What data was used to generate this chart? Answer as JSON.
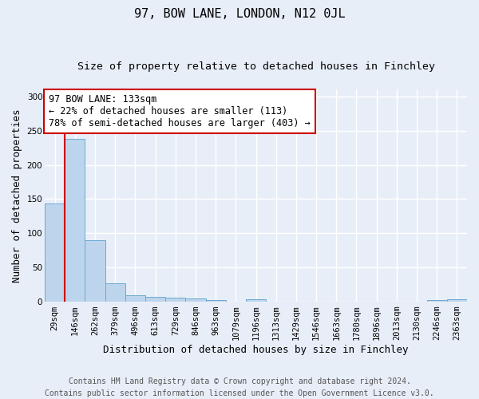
{
  "title": "97, BOW LANE, LONDON, N12 0JL",
  "subtitle": "Size of property relative to detached houses in Finchley",
  "xlabel": "Distribution of detached houses by size in Finchley",
  "ylabel": "Number of detached properties",
  "categories": [
    "29sqm",
    "146sqm",
    "262sqm",
    "379sqm",
    "496sqm",
    "613sqm",
    "729sqm",
    "846sqm",
    "963sqm",
    "1079sqm",
    "1196sqm",
    "1313sqm",
    "1429sqm",
    "1546sqm",
    "1663sqm",
    "1780sqm",
    "1896sqm",
    "2013sqm",
    "2130sqm",
    "2246sqm",
    "2363sqm"
  ],
  "values": [
    143,
    238,
    90,
    27,
    9,
    7,
    6,
    5,
    2,
    0,
    3,
    0,
    0,
    0,
    0,
    0,
    0,
    0,
    0,
    2,
    3
  ],
  "bar_color": "#bdd5ec",
  "bar_edge_color": "#6aaad4",
  "background_color": "#e8eef8",
  "grid_color": "#ffffff",
  "annotation_text": "97 BOW LANE: 133sqm\n← 22% of detached houses are smaller (113)\n78% of semi-detached houses are larger (403) →",
  "annotation_box_color": "#ffffff",
  "annotation_box_edge": "#cc0000",
  "vline_x": 0.5,
  "vline_color": "#cc0000",
  "ylim": [
    0,
    310
  ],
  "yticks": [
    0,
    50,
    100,
    150,
    200,
    250,
    300
  ],
  "footer": "Contains HM Land Registry data © Crown copyright and database right 2024.\nContains public sector information licensed under the Open Government Licence v3.0.",
  "title_fontsize": 11,
  "subtitle_fontsize": 9.5,
  "axis_label_fontsize": 9,
  "tick_fontsize": 7.5,
  "annotation_fontsize": 8.5,
  "footer_fontsize": 7
}
